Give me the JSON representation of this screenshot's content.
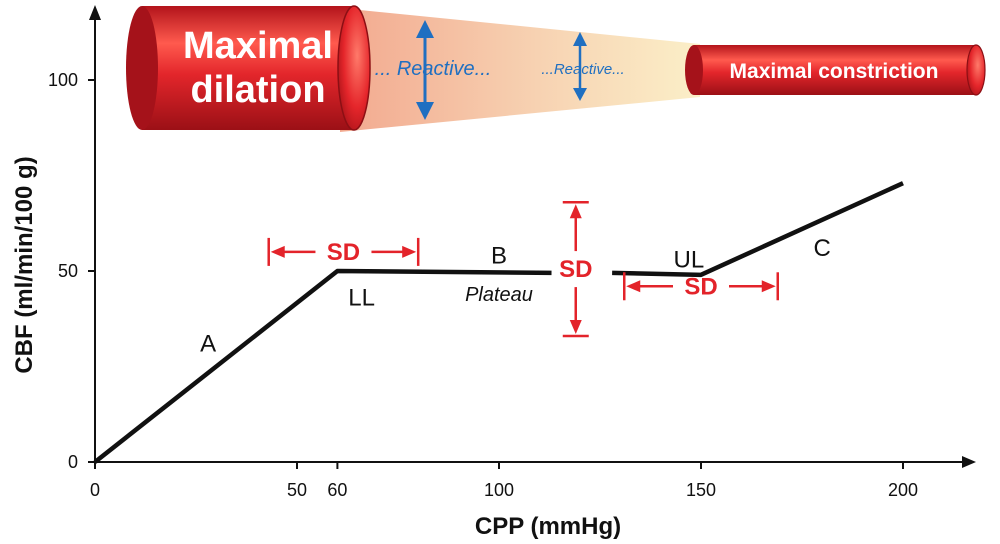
{
  "chart_data": {
    "type": "line",
    "xlabel": "CPP (mmHg)",
    "ylabel": "CBF (ml/min/100 g)",
    "xlim": [
      0,
      220
    ],
    "ylim": [
      0,
      120
    ],
    "x_ticks": [
      0,
      50,
      60,
      100,
      150,
      200
    ],
    "y_ticks": [
      0,
      50,
      100
    ],
    "series": [
      {
        "points": [
          [
            0,
            0
          ],
          [
            60,
            50
          ],
          [
            113,
            49.5
          ],
          [
            128,
            49.5
          ],
          [
            150,
            49
          ],
          [
            200,
            73
          ]
        ]
      }
    ],
    "segment_labels": [
      {
        "text": "A",
        "x": 28,
        "y": 31
      },
      {
        "text": "LL",
        "x": 66,
        "y": 43
      },
      {
        "text": "B",
        "x": 100,
        "y": 54
      },
      {
        "text": "UL",
        "x": 147,
        "y": 53
      },
      {
        "text": "C",
        "x": 180,
        "y": 56
      }
    ],
    "plateau_label": {
      "text": "Plateau",
      "x": 100,
      "y": 44
    },
    "sd_markers": [
      {
        "label": "SD",
        "orientation": "horizontal",
        "from": 43,
        "to": 80,
        "at": 55
      },
      {
        "label": "SD",
        "orientation": "vertical",
        "from": 33,
        "to": 68,
        "at": 119
      },
      {
        "label": "SD",
        "orientation": "horizontal",
        "from": 131,
        "to": 169,
        "at": 46
      }
    ],
    "vessels": {
      "dilation_lines": [
        "Maximal",
        "dilation"
      ],
      "constriction": "Maximal constriction",
      "reactive_1": "... Reactive...",
      "reactive_2": "...Reactive..."
    },
    "colors": {
      "curve": "#111111",
      "sd": "#e3232a",
      "vessel": "#d81f26",
      "arrow": "#1f6fc1",
      "cone": "#f3b79a"
    }
  }
}
